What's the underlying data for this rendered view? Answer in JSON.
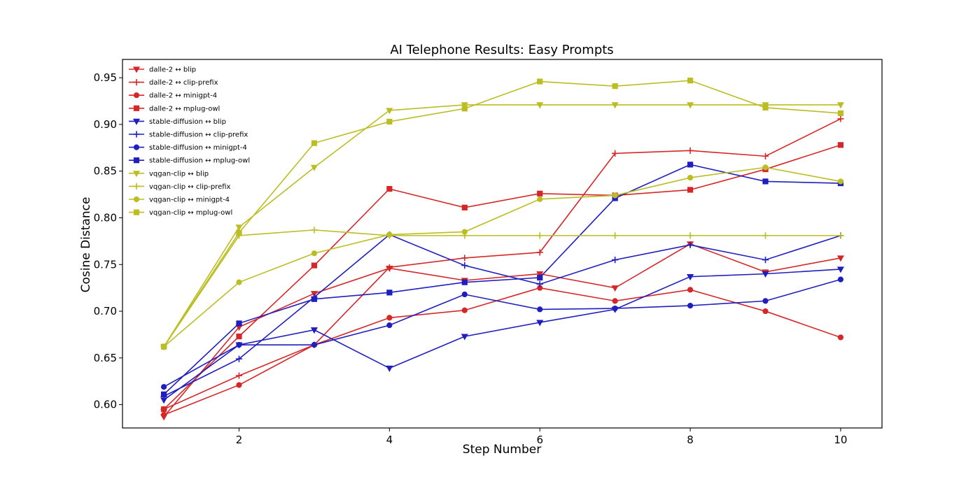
{
  "chart_data": {
    "type": "line",
    "title": "AI Telephone Results: Easy Prompts",
    "xlabel": "Step Number",
    "ylabel": "Cosine Distance",
    "xlim": [
      0.45,
      10.55
    ],
    "ylim": [
      0.575,
      0.9696
    ],
    "xticks": [
      2,
      4,
      6,
      8,
      10
    ],
    "yticks": [
      0.6,
      0.65,
      0.7,
      0.75,
      0.8,
      0.85,
      0.9,
      0.95
    ],
    "xtick_labels": [
      "2",
      "4",
      "6",
      "8",
      "10"
    ],
    "ytick_labels": [
      "0.60",
      "0.65",
      "0.70",
      "0.75",
      "0.80",
      "0.85",
      "0.90",
      "0.95"
    ],
    "grid": false,
    "legend_position": "top-left",
    "x": [
      1,
      2,
      3,
      4,
      5,
      6,
      7,
      8,
      9,
      10
    ],
    "series": [
      {
        "name": "dalle-2 ↔ blip",
        "color": "#d62728",
        "marker": "triangle-down",
        "values": [
          0.587,
          0.683,
          0.719,
          0.746,
          0.733,
          0.74,
          0.725,
          0.772,
          0.742,
          0.757
        ]
      },
      {
        "name": "dalle-2 ↔ clip-prefix",
        "color": "#d62728",
        "marker": "plus",
        "values": [
          0.595,
          0.631,
          0.664,
          0.747,
          0.757,
          0.763,
          0.869,
          0.872,
          0.866,
          0.906
        ]
      },
      {
        "name": "dalle-2 ↔ minigpt-4",
        "color": "#d62728",
        "marker": "circle",
        "values": [
          0.589,
          0.621,
          0.664,
          0.693,
          0.701,
          0.725,
          0.711,
          0.723,
          0.7,
          0.672
        ]
      },
      {
        "name": "dalle-2 ↔ mplug-owl",
        "color": "#d62728",
        "marker": "square",
        "values": [
          0.595,
          0.673,
          0.749,
          0.831,
          0.811,
          0.826,
          0.824,
          0.83,
          0.852,
          0.878
        ]
      },
      {
        "name": "stable-diffusion ↔ blip",
        "color": "#1f1fbf",
        "marker": "triangle-down",
        "values": [
          0.605,
          0.664,
          0.68,
          0.639,
          0.673,
          0.688,
          0.702,
          0.737,
          0.74,
          0.745
        ]
      },
      {
        "name": "stable-diffusion ↔ clip-prefix",
        "color": "#1f1fbf",
        "marker": "plus",
        "values": [
          0.609,
          0.649,
          0.715,
          0.782,
          0.749,
          0.729,
          0.755,
          0.771,
          0.755,
          0.781
        ]
      },
      {
        "name": "stable-diffusion ↔ minigpt-4",
        "color": "#1f1fbf",
        "marker": "circle",
        "values": [
          0.619,
          0.664,
          0.664,
          0.685,
          0.718,
          0.702,
          0.703,
          0.706,
          0.711,
          0.734
        ]
      },
      {
        "name": "stable-diffusion ↔ mplug-owl",
        "color": "#1f1fbf",
        "marker": "square",
        "values": [
          0.611,
          0.687,
          0.713,
          0.72,
          0.731,
          0.736,
          0.821,
          0.857,
          0.839,
          0.837
        ]
      },
      {
        "name": "vqgan-clip ↔ blip",
        "color": "#bcbd22",
        "marker": "triangle-down",
        "values": [
          0.662,
          0.79,
          0.854,
          0.915,
          0.921,
          0.921,
          0.921,
          0.921,
          0.921,
          0.921
        ]
      },
      {
        "name": "vqgan-clip ↔ clip-prefix",
        "color": "#bcbd22",
        "marker": "plus",
        "values": [
          0.662,
          0.781,
          0.787,
          0.781,
          0.781,
          0.781,
          0.781,
          0.781,
          0.781,
          0.781
        ]
      },
      {
        "name": "vqgan-clip ↔ minigpt-4",
        "color": "#bcbd22",
        "marker": "circle",
        "values": [
          0.662,
          0.731,
          0.762,
          0.782,
          0.785,
          0.82,
          0.824,
          0.843,
          0.854,
          0.839
        ]
      },
      {
        "name": "vqgan-clip ↔ mplug-owl",
        "color": "#bcbd22",
        "marker": "square",
        "values": [
          0.662,
          0.784,
          0.88,
          0.903,
          0.917,
          0.946,
          0.941,
          0.947,
          0.918,
          0.912
        ]
      }
    ]
  }
}
